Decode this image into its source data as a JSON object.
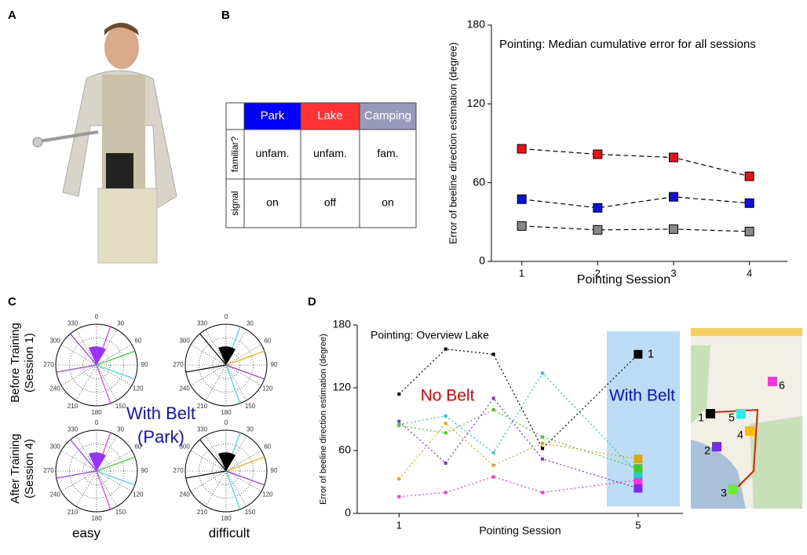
{
  "panels": [
    "A",
    "B",
    "C",
    "D"
  ],
  "table": {
    "columns": [
      "Park",
      "Lake",
      "Camping"
    ],
    "column_colors": [
      "#0000ff",
      "#ff3333",
      "#9999bb"
    ],
    "rows": [
      {
        "label": "familiar?",
        "cells": [
          "unfam.",
          "unfam.",
          "fam."
        ]
      },
      {
        "label": "signal",
        "cells": [
          "on",
          "off",
          "on"
        ]
      }
    ]
  },
  "polar": {
    "angle_labels": [
      0,
      30,
      60,
      90,
      120,
      150,
      180,
      210,
      240,
      270,
      300,
      330
    ],
    "row_labels": [
      [
        "Before Training",
        "(Session 1)"
      ],
      [
        "After Training",
        "(Session 4)"
      ]
    ],
    "column_labels": [
      "easy",
      "difficult"
    ],
    "center_label": [
      "With Belt",
      "(Park)"
    ]
  },
  "map": {
    "labels": [
      "1",
      "2",
      "3",
      "4",
      "5",
      "6"
    ],
    "colors": [
      "#000000",
      "#7a2cf0",
      "#66ee33",
      "#ffbb00",
      "#22eeee",
      "#ff33dd"
    ]
  },
  "chart_data": [
    {
      "type": "line",
      "title": "Pointing: Median cumulative error for all sessions",
      "xlabel": "Pointing Session",
      "ylabel": "Error of beeline direction estimation (degree)",
      "x": [
        1,
        2,
        3,
        4
      ],
      "xlim": [
        0.6,
        4.5
      ],
      "xticks": [
        1,
        2,
        3,
        4
      ],
      "ylim": [
        0,
        180
      ],
      "yticks": [
        0,
        60,
        120,
        180
      ],
      "line_style": "dashed",
      "marker": "square",
      "series": [
        {
          "color": "#ee1111",
          "values": [
            85.8,
            81.6,
            79.2,
            64.8
          ]
        },
        {
          "color": "#1111dd",
          "values": [
            47.4,
            40.8,
            49.2,
            44.4
          ]
        },
        {
          "color": "#888888",
          "values": [
            27,
            24,
            24.6,
            22.8
          ]
        }
      ]
    },
    {
      "type": "line",
      "title": "Pointing: Overview Lake",
      "xlabel": "Pointing Session",
      "ylabel": "Error of beeline direction estimation (degree)",
      "annotations": [
        "No Belt",
        "With Belt",
        "1"
      ],
      "x": [
        1,
        1.78,
        2.58,
        3.4,
        5
      ],
      "xlim": [
        0.3,
        5.75
      ],
      "xticks": [
        1,
        5
      ],
      "ylim": [
        0,
        180
      ],
      "yticks": [
        0,
        60,
        120,
        180
      ],
      "line_style": "dotted",
      "marker": "square",
      "series": [
        {
          "color": "#000000",
          "values": [
            114,
            157,
            152,
            62,
            152
          ]
        },
        {
          "color": "#7a2cf0",
          "values": [
            88,
            48,
            110,
            52,
            24
          ]
        },
        {
          "color": "#ff33dd",
          "values": [
            16,
            20,
            35,
            20,
            32
          ]
        },
        {
          "color": "#22cccc",
          "values": [
            85,
            93,
            58,
            134,
            38
          ]
        },
        {
          "color": "#44cc22",
          "values": [
            84,
            77,
            99,
            73,
            43
          ]
        },
        {
          "color": "#ddaa00",
          "values": [
            33,
            86,
            46,
            67,
            52
          ]
        }
      ]
    }
  ]
}
